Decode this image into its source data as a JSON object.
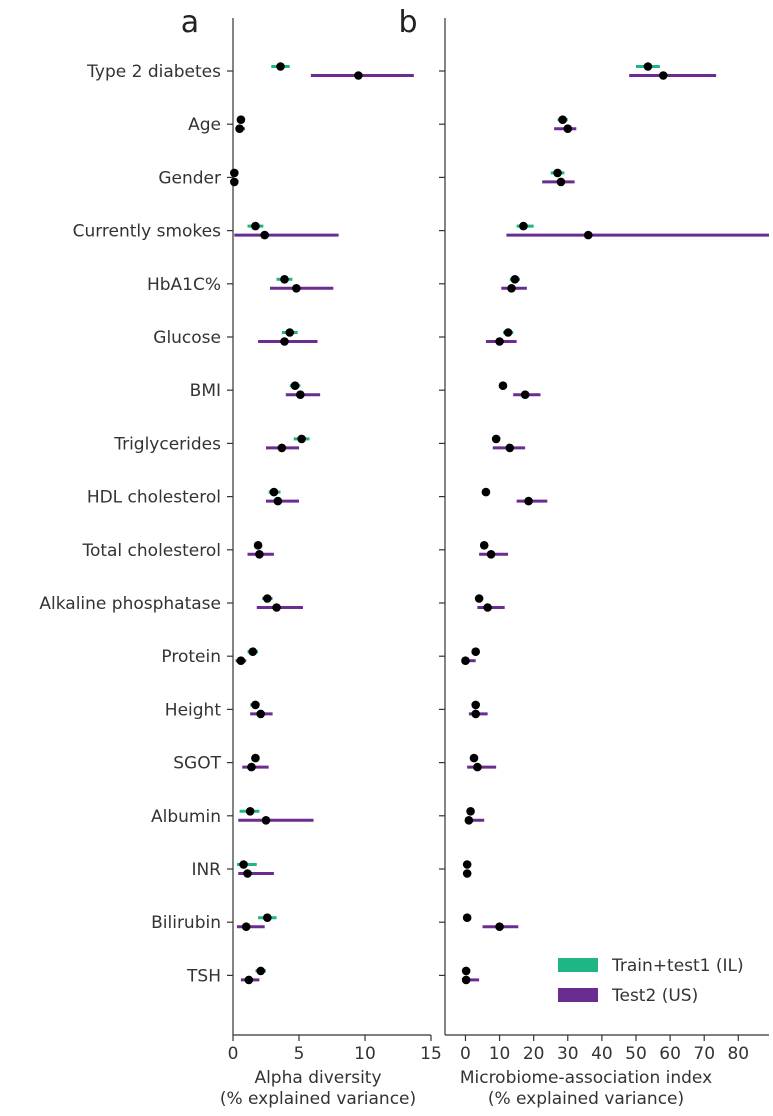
{
  "chart_data": [
    {
      "type": "scatter",
      "panel_label": "a",
      "xlabel_line1": "Alpha diversity",
      "xlabel_line2": "(% explained variance)",
      "xlim": [
        0,
        15
      ],
      "xticks": [
        "0",
        "5",
        "10",
        "15"
      ],
      "categories": [
        "Type 2 diabetes",
        "Age",
        "Gender",
        "Currently smokes",
        "HbA1C%",
        "Glucose",
        "BMI",
        "Triglycerides",
        "HDL cholesterol",
        "Total cholesterol",
        "Alkaline phosphatase",
        "Protein",
        "Height",
        "SGOT",
        "Albumin",
        "INR",
        "Bilirubin",
        "TSH"
      ],
      "series": [
        {
          "name": "Train+test1 (IL)",
          "values": [
            3.6,
            0.6,
            0.1,
            1.7,
            3.9,
            4.3,
            4.7,
            5.2,
            3.1,
            1.9,
            2.6,
            1.5,
            1.7,
            1.7,
            1.3,
            0.8,
            2.6,
            2.1
          ],
          "ci": [
            [
              2.9,
              4.3
            ],
            [
              0.3,
              0.9
            ],
            [
              0,
              0.2
            ],
            [
              1.1,
              2.3
            ],
            [
              3.3,
              4.5
            ],
            [
              3.7,
              4.9
            ],
            [
              4.3,
              5.1
            ],
            [
              4.6,
              5.8
            ],
            [
              2.7,
              3.6
            ],
            [
              1.6,
              2.2
            ],
            [
              2.2,
              3.0
            ],
            [
              1.1,
              1.9
            ],
            [
              1.3,
              2.0
            ],
            [
              1.4,
              2.0
            ],
            [
              0.5,
              2.0
            ],
            [
              0.3,
              1.8
            ],
            [
              1.9,
              3.3
            ],
            [
              1.7,
              2.5
            ]
          ]
        },
        {
          "name": "Test2 (US)",
          "values": [
            9.5,
            0.5,
            0.1,
            2.4,
            4.8,
            3.9,
            5.1,
            3.7,
            3.4,
            2.0,
            3.3,
            0.6,
            2.1,
            1.4,
            2.5,
            1.1,
            1.0,
            1.2
          ],
          "ci": [
            [
              5.9,
              13.7
            ],
            [
              0.2,
              0.9
            ],
            [
              0,
              0.2
            ],
            [
              0.1,
              8.0
            ],
            [
              2.8,
              7.6
            ],
            [
              1.9,
              6.4
            ],
            [
              4.0,
              6.6
            ],
            [
              2.5,
              5.0
            ],
            [
              2.5,
              5.0
            ],
            [
              1.1,
              3.1
            ],
            [
              1.8,
              5.3
            ],
            [
              0.2,
              1.0
            ],
            [
              1.3,
              3.0
            ],
            [
              0.7,
              2.7
            ],
            [
              0.4,
              6.1
            ],
            [
              0.4,
              3.1
            ],
            [
              0.3,
              2.4
            ],
            [
              0.6,
              2.0
            ]
          ]
        }
      ]
    },
    {
      "type": "scatter",
      "panel_label": "b",
      "xlabel_line1": "Microbiome-association index",
      "xlabel_line2": "(% explained variance)",
      "xlim": [
        -6,
        89
      ],
      "xticks": [
        "0",
        "10",
        "20",
        "30",
        "40",
        "50",
        "60",
        "70",
        "80"
      ],
      "categories": [
        "Type 2 diabetes",
        "Age",
        "Gender",
        "Currently smokes",
        "HbA1C%",
        "Glucose",
        "BMI",
        "Triglycerides",
        "HDL cholesterol",
        "Total cholesterol",
        "Alkaline phosphatase",
        "Protein",
        "Height",
        "SGOT",
        "Albumin",
        "INR",
        "Bilirubin",
        "TSH"
      ],
      "series": [
        {
          "name": "Train+test1 (IL)",
          "values": [
            53.5,
            28.5,
            27.0,
            17.0,
            14.5,
            12.5,
            11.0,
            9.0,
            6.0,
            5.5,
            4.0,
            3.0,
            3.0,
            2.5,
            1.5,
            0.5,
            0.5,
            0.2
          ],
          "ci": [
            [
              50,
              57
            ],
            [
              27,
              30
            ],
            [
              25,
              29
            ],
            [
              15,
              20
            ],
            [
              13,
              16
            ],
            [
              11,
              14
            ],
            [
              10,
              12
            ],
            [
              8,
              10
            ],
            [
              5.5,
              6.5
            ],
            [
              5,
              6
            ],
            [
              3.5,
              4.5
            ],
            [
              2.5,
              3.5
            ],
            [
              2.5,
              3.5
            ],
            [
              2,
              3
            ],
            [
              1,
              2
            ],
            [
              0.2,
              0.8
            ],
            [
              0.2,
              0.8
            ],
            [
              0,
              0.5
            ]
          ]
        },
        {
          "name": "Test2 (US)",
          "values": [
            58.0,
            30.0,
            28.0,
            36.0,
            13.5,
            10.0,
            17.5,
            13.0,
            18.5,
            7.5,
            6.5,
            0.0,
            3.0,
            3.5,
            1.0,
            0.5,
            10.0,
            0.2
          ],
          "ci": [
            [
              48,
              73.5
            ],
            [
              26,
              32.5
            ],
            [
              22.5,
              32
            ],
            [
              12,
              89
            ],
            [
              10.5,
              18
            ],
            [
              6,
              15
            ],
            [
              14,
              22
            ],
            [
              8,
              17.5
            ],
            [
              15,
              24
            ],
            [
              4,
              12.5
            ],
            [
              3.5,
              11.5
            ],
            [
              0,
              3
            ],
            [
              1,
              6.5
            ],
            [
              0.5,
              9
            ],
            [
              0.5,
              5.5
            ],
            [
              0.2,
              0.8
            ],
            [
              5,
              15.5
            ],
            [
              0,
              4
            ]
          ]
        }
      ]
    }
  ],
  "legend": {
    "items": [
      {
        "label": "Train+test1 (IL)",
        "color": "#1fb585"
      },
      {
        "label": "Test2 (US)",
        "color": "#6a2c91"
      }
    ]
  },
  "colors": {
    "train": "#1fb585",
    "test2": "#6a2c91",
    "point": "#000000",
    "axis": "#333333"
  }
}
